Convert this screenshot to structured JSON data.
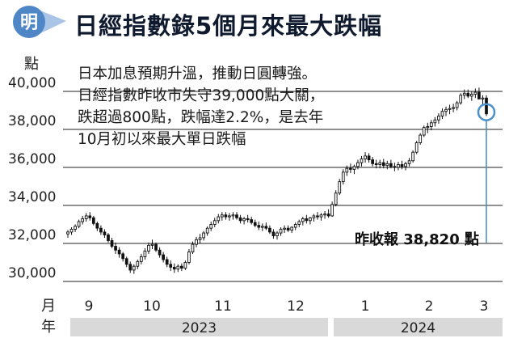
{
  "header": {
    "badge_char": "明",
    "title": "日經指數錄5個月來最大跌幅"
  },
  "annotation": "日本加息預期升溫，推動日圓轉強。日經指數昨收市失守39,000點大關，跌超過800點，跌幅達2.2%，是去年10月初以來最大單日跌幅",
  "callout": "昨收報 38,820 點",
  "colors": {
    "badge": "#4f86c6",
    "badge_tail": "#a9c4e6",
    "gridline": "#222222",
    "candle": "#111111",
    "year_band": "#d9d9d9",
    "highlight": "#4a90c9"
  },
  "chart_data": {
    "type": "candlestick",
    "y_unit": "點",
    "x_unit": "月",
    "year_unit": "年",
    "ylim": [
      30000,
      40000
    ],
    "yticks": [
      40000,
      38000,
      36000,
      34000,
      32000,
      30000
    ],
    "ytick_labels": [
      "40,000",
      "38,000",
      "36,000",
      "34,000",
      "32,000",
      "30,000"
    ],
    "grid": true,
    "months": [
      {
        "label": "9",
        "date": "2023-09"
      },
      {
        "label": "10",
        "date": "2023-10"
      },
      {
        "label": "11",
        "date": "2023-11"
      },
      {
        "label": "12",
        "date": "2023-12"
      },
      {
        "label": "1",
        "date": "2024-01"
      },
      {
        "label": "2",
        "date": "2024-02"
      },
      {
        "label": "3",
        "date": "2024-03"
      }
    ],
    "years": [
      {
        "label": "2023",
        "from": "2023-09",
        "to": "2023-12"
      },
      {
        "label": "2024",
        "from": "2024-01",
        "to": "2024-03"
      }
    ],
    "highlight": {
      "label": "昨收報 38,820 點",
      "value": 38820
    },
    "series": [
      {
        "values": [
          [
            32500,
            32700,
            32300,
            32600
          ],
          [
            32600,
            32850,
            32450,
            32750
          ],
          [
            32750,
            33000,
            32600,
            32900
          ],
          [
            32900,
            33250,
            32800,
            33150
          ],
          [
            33150,
            33450,
            33000,
            33300
          ],
          [
            33300,
            33600,
            33150,
            33450
          ],
          [
            33450,
            33650,
            33200,
            33350
          ],
          [
            33350,
            33450,
            32950,
            33050
          ],
          [
            33050,
            33150,
            32650,
            32800
          ],
          [
            32800,
            32950,
            32450,
            32600
          ],
          [
            32600,
            32750,
            32300,
            32450
          ],
          [
            32450,
            32550,
            32050,
            32150
          ],
          [
            32150,
            32300,
            31750,
            31850
          ],
          [
            31850,
            32050,
            31450,
            31650
          ],
          [
            31650,
            31800,
            31250,
            31450
          ],
          [
            31450,
            31550,
            31050,
            31200
          ],
          [
            31200,
            31300,
            30750,
            30900
          ],
          [
            30900,
            31050,
            30450,
            30600
          ],
          [
            30600,
            30900,
            30400,
            30800
          ],
          [
            30800,
            31150,
            30650,
            31050
          ],
          [
            31050,
            31450,
            30900,
            31300
          ],
          [
            31300,
            31750,
            31150,
            31600
          ],
          [
            31600,
            32050,
            31450,
            31900
          ],
          [
            31900,
            32200,
            31700,
            31950
          ],
          [
            31950,
            32050,
            31550,
            31650
          ],
          [
            31650,
            31800,
            31250,
            31400
          ],
          [
            31400,
            31550,
            31000,
            31150
          ],
          [
            31150,
            31300,
            30750,
            30900
          ],
          [
            30900,
            31100,
            30550,
            30750
          ],
          [
            30750,
            30950,
            30450,
            30650
          ],
          [
            30650,
            30900,
            30500,
            30800
          ],
          [
            30800,
            30950,
            30550,
            30700
          ],
          [
            30700,
            31100,
            30600,
            31000
          ],
          [
            31000,
            31700,
            30900,
            31550
          ],
          [
            31550,
            32100,
            31450,
            31950
          ],
          [
            31950,
            32350,
            31800,
            32200
          ],
          [
            32200,
            32500,
            32000,
            32300
          ],
          [
            32300,
            32650,
            32150,
            32550
          ],
          [
            32550,
            32900,
            32400,
            32800
          ],
          [
            32800,
            33150,
            32650,
            33000
          ],
          [
            33000,
            33350,
            32850,
            33200
          ],
          [
            33200,
            33550,
            33050,
            33400
          ],
          [
            33400,
            33650,
            33200,
            33500
          ],
          [
            33500,
            33650,
            33250,
            33400
          ],
          [
            33400,
            33600,
            33200,
            33450
          ],
          [
            33450,
            33650,
            33250,
            33500
          ],
          [
            33500,
            33650,
            33250,
            33350
          ],
          [
            33350,
            33500,
            33050,
            33200
          ],
          [
            33200,
            33400,
            33000,
            33300
          ],
          [
            33300,
            33500,
            33100,
            33250
          ],
          [
            33250,
            33400,
            33000,
            33100
          ],
          [
            33100,
            33250,
            32850,
            32950
          ],
          [
            32950,
            33150,
            32700,
            32850
          ],
          [
            32850,
            33050,
            32650,
            32900
          ],
          [
            32900,
            33100,
            32700,
            32800
          ],
          [
            32800,
            32950,
            32500,
            32600
          ],
          [
            32600,
            32750,
            32250,
            32400
          ],
          [
            32400,
            32650,
            32200,
            32550
          ],
          [
            32550,
            32850,
            32400,
            32750
          ],
          [
            32750,
            32950,
            32550,
            32800
          ],
          [
            32800,
            32950,
            32600,
            32700
          ],
          [
            32700,
            32900,
            32550,
            32850
          ],
          [
            32850,
            33100,
            32700,
            33000
          ],
          [
            33000,
            33250,
            32850,
            33150
          ],
          [
            33150,
            33400,
            32950,
            33300
          ],
          [
            33300,
            33500,
            33050,
            33200
          ],
          [
            33200,
            33400,
            33000,
            33350
          ],
          [
            33350,
            33550,
            33150,
            33450
          ],
          [
            33450,
            33650,
            33250,
            33400
          ],
          [
            33400,
            33600,
            33200,
            33500
          ],
          [
            33500,
            33700,
            33300,
            33550
          ],
          [
            33550,
            33800,
            33350,
            33450
          ],
          [
            33450,
            34200,
            33400,
            34050
          ],
          [
            34050,
            34800,
            33950,
            34650
          ],
          [
            34650,
            35400,
            34550,
            35250
          ],
          [
            35250,
            35900,
            35100,
            35750
          ],
          [
            35750,
            36100,
            35550,
            35950
          ],
          [
            35950,
            36200,
            35700,
            35900
          ],
          [
            35900,
            36150,
            35650,
            36050
          ],
          [
            36050,
            36400,
            35900,
            36250
          ],
          [
            36250,
            36600,
            36050,
            36450
          ],
          [
            36450,
            36800,
            36250,
            36600
          ],
          [
            36600,
            36750,
            36250,
            36400
          ],
          [
            36400,
            36550,
            36050,
            36200
          ],
          [
            36200,
            36400,
            35950,
            36150
          ],
          [
            36150,
            36400,
            35950,
            36250
          ],
          [
            36250,
            36450,
            35950,
            36100
          ],
          [
            36100,
            36350,
            35900,
            36200
          ],
          [
            36200,
            36400,
            35950,
            36050
          ],
          [
            36050,
            36250,
            35800,
            36000
          ],
          [
            36000,
            36300,
            35850,
            36150
          ],
          [
            36150,
            36350,
            35900,
            36050
          ],
          [
            36050,
            36300,
            35850,
            36200
          ],
          [
            36200,
            36500,
            36050,
            36350
          ],
          [
            36350,
            36900,
            36250,
            36800
          ],
          [
            36800,
            37400,
            36700,
            37300
          ],
          [
            37300,
            37800,
            37200,
            37700
          ],
          [
            37700,
            38200,
            37600,
            38100
          ],
          [
            38100,
            38350,
            37800,
            38150
          ],
          [
            38150,
            38500,
            37950,
            38350
          ],
          [
            38350,
            38650,
            38150,
            38500
          ],
          [
            38500,
            38850,
            38300,
            38700
          ],
          [
            38700,
            39100,
            38550,
            38950
          ],
          [
            38950,
            39200,
            38700,
            39050
          ],
          [
            39050,
            39300,
            38800,
            39100
          ],
          [
            39100,
            39350,
            38900,
            39150
          ],
          [
            39150,
            39500,
            39000,
            39400
          ],
          [
            39400,
            39900,
            39300,
            39800
          ],
          [
            39800,
            40100,
            39600,
            39900
          ],
          [
            39900,
            40100,
            39650,
            39750
          ],
          [
            39750,
            40000,
            39500,
            39850
          ],
          [
            39850,
            40150,
            39650,
            39950
          ],
          [
            39950,
            40200,
            39700,
            39600
          ],
          [
            39600,
            39800,
            39300,
            39650
          ],
          [
            39650,
            39800,
            38700,
            38820
          ]
        ]
      }
    ]
  }
}
